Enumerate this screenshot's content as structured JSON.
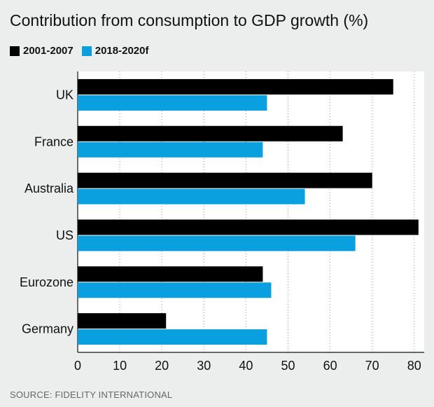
{
  "chart_data": {
    "type": "bar",
    "orientation": "horizontal",
    "title": "Contribution from consumption to GDP growth (%)",
    "xlabel": "",
    "ylabel": "",
    "categories": [
      "UK",
      "France",
      "Australia",
      "US",
      "Eurozone",
      "Germany"
    ],
    "series": [
      {
        "name": "2001-2007",
        "color": "#000000",
        "values": [
          75,
          63,
          70,
          81,
          44,
          21
        ]
      },
      {
        "name": "2018-2020f",
        "color": "#0aa0e0",
        "values": [
          45,
          44,
          54,
          66,
          46,
          45
        ]
      }
    ],
    "xlim": [
      0,
      80
    ],
    "xticks": [
      0,
      10,
      20,
      30,
      40,
      50,
      60,
      70,
      80
    ],
    "grid": "vertical-dotted",
    "legend_position": "top-left",
    "source": "SOURCE: FIDELITY INTERNATIONAL"
  }
}
